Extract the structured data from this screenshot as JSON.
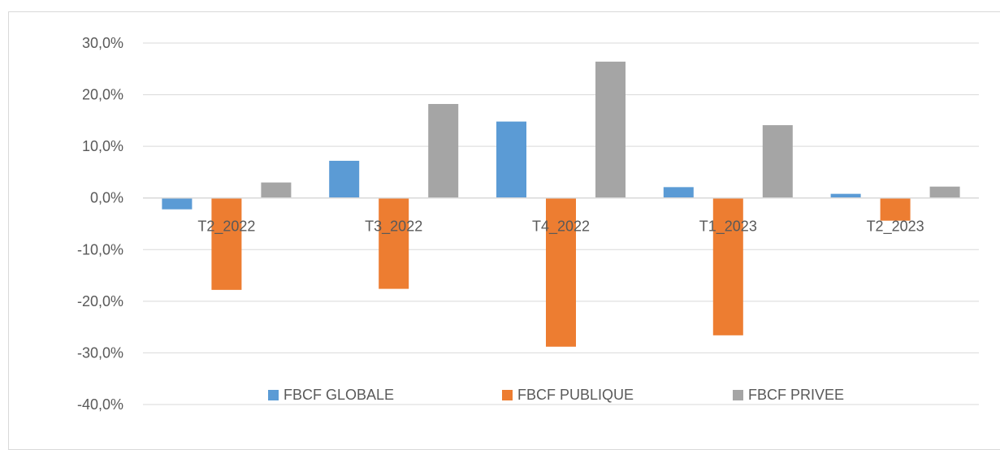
{
  "chart_data": {
    "type": "bar",
    "title": "",
    "xlabel": "",
    "ylabel": "",
    "categories": [
      "T2_2022",
      "T3_2022",
      "T4_2022",
      "T1_2023",
      "T2_2023"
    ],
    "series": [
      {
        "name": "FBCF GLOBALE",
        "color": "#5b9bd5",
        "values": [
          -2.2,
          7.2,
          14.8,
          2.1,
          0.8
        ]
      },
      {
        "name": "FBCF PUBLIQUE",
        "color": "#ed7d31",
        "values": [
          -17.8,
          -17.6,
          -28.8,
          -26.6,
          -4.4
        ]
      },
      {
        "name": "FBCF PRIVEE",
        "color": "#a5a5a5",
        "values": [
          3.0,
          18.2,
          26.4,
          14.1,
          2.2
        ]
      }
    ],
    "ylim": [
      -40,
      30
    ],
    "yticks": [
      30,
      20,
      10,
      0,
      -10,
      -20,
      -30,
      -40
    ],
    "ytick_labels": [
      "30,0%",
      "20,0%",
      "10,0%",
      "0,0%",
      "-10,0%",
      "-20,0%",
      "-30,0%",
      "-40,0%"
    ],
    "grid": true,
    "legend_position": "bottom"
  }
}
